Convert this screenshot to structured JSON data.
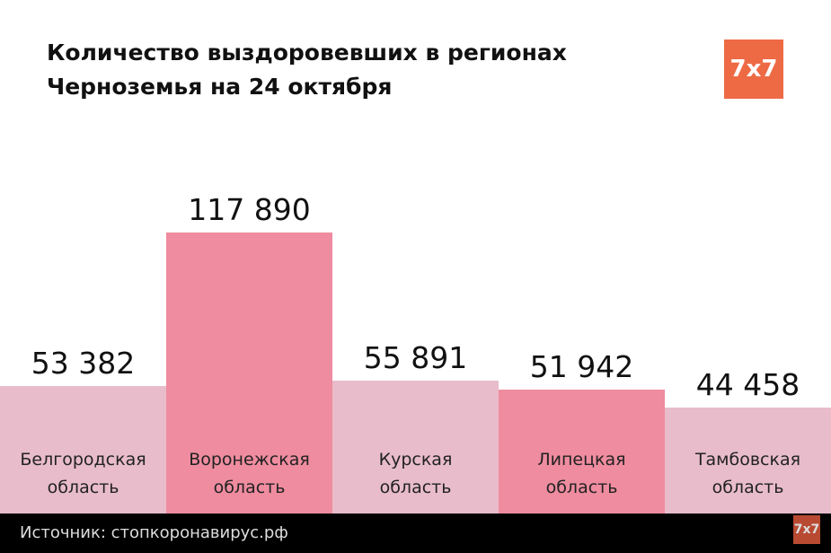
{
  "title": "Количество выздоровевших в регионах Черноземья на 24 октября",
  "logo": "7x7",
  "footer": {
    "source": "Источник: стопкоронавирус.рф",
    "logo": "7x7"
  },
  "chart_data": {
    "type": "bar",
    "title": "Количество выздоровевших в регионах Черноземья на 24 октября",
    "categories": [
      "Белгородская область",
      "Воронежская область",
      "Курская область",
      "Липецкая область",
      "Тамбовская область"
    ],
    "values": [
      53382,
      117890,
      55891,
      51942,
      44458
    ],
    "labels": [
      "53 382",
      "117 890",
      "55 891",
      "51 942",
      "44 458"
    ],
    "colors": [
      "#e8bccb",
      "#ef8c9f",
      "#e8bccb",
      "#ef8c9f",
      "#e8bccb"
    ],
    "ylim": [
      0,
      117890
    ],
    "xlabel": "",
    "ylabel": ""
  }
}
